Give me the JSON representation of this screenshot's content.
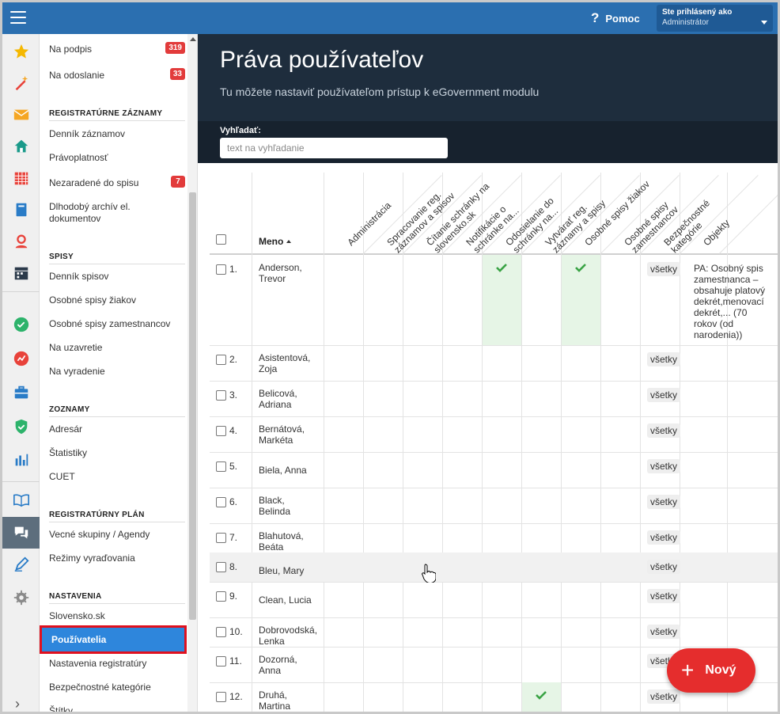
{
  "topbar": {
    "help_label": "Pomoc",
    "user_label": "Ste prihlásený ako",
    "user_name": "Administrátor"
  },
  "rail_icons": [
    "star-icon",
    "wand-icon",
    "mail-icon",
    "home-icon",
    "calendar-icon",
    "book-icon",
    "person-icon",
    "calendar-check-icon",
    "check-circle-icon",
    "chart-badge-icon",
    "briefcase-icon",
    "shield-icon",
    "bar-chart-icon",
    "open-book-icon",
    "chat-icon",
    "pen-icon",
    "gear-icon"
  ],
  "sidebar": {
    "items": [
      {
        "label": "Na podpis",
        "badge": "319"
      },
      {
        "label": "Na odoslanie",
        "badge": "33"
      }
    ],
    "sections": [
      {
        "title": "REGISTRATÚRNE ZÁZNAMY",
        "items": [
          "Denník záznamov",
          "Právoplatnosť",
          "Nezaradené do spisu",
          "Dlhodobý archív el. dokumentov"
        ],
        "badge_item": "Nezaradené do spisu",
        "badge": "7"
      },
      {
        "title": "SPISY",
        "items": [
          "Denník spisov",
          "Osobné spisy žiakov",
          "Osobné spisy zamestnancov",
          "Na uzavretie",
          "Na vyradenie"
        ]
      },
      {
        "title": "ZOZNAMY",
        "items": [
          "Adresár",
          "Štatistiky",
          "CUET"
        ]
      },
      {
        "title": "REGISTRATÚRNY PLÁN",
        "items": [
          "Vecné skupiny / Agendy",
          "Režimy vyraďovania"
        ]
      },
      {
        "title": "NASTAVENIA",
        "items": [
          "Slovensko.sk",
          "Používatelia",
          "Nastavenia registratúry",
          "Bezpečnostné kategórie",
          "Štítky"
        ]
      }
    ],
    "selected": "Používatelia"
  },
  "page": {
    "title": "Práva používateľov",
    "subtitle": "Tu môžete nastaviť používateľom prístup k eGovernment modulu",
    "search_label": "Vyhľadať:",
    "search_placeholder": "text na vyhľadanie"
  },
  "table": {
    "name_header": "Meno",
    "columns": [
      "Administrácia",
      "Spracovanie reg.\nzáznamov a spisov",
      "Čítanie schránky na\nslovensko.sk",
      "Notifikácie o\nschránke na...",
      "Odosielanie do\nschránky na...",
      "Vytvárať reg.\nzáznamy a spisy",
      "Osobné spisy žiakov",
      "Osobné spisy\nzamestnancov",
      "Bezpečnostné\nkategórie",
      "Objekty"
    ],
    "rows": [
      {
        "num": "1.",
        "name": "Anderson,\nTrevor",
        "checks": [
          4,
          6
        ],
        "security": "všetky",
        "objects": "PA: Osobný spis zamestnanca – obsahuje platový dekrét,menovací dekrét,... (70 rokov (od narodenia))"
      },
      {
        "num": "2.",
        "name": "Asistentová,\nZoja",
        "checks": [],
        "security": "všetky",
        "objects": ""
      },
      {
        "num": "3.",
        "name": "Belicová,\nAdriana",
        "checks": [],
        "security": "všetky",
        "objects": ""
      },
      {
        "num": "4.",
        "name": "Bernátová,\nMarkéta",
        "checks": [],
        "security": "všetky",
        "objects": ""
      },
      {
        "num": "5.",
        "name": "Biela, Anna",
        "checks": [],
        "security": "všetky",
        "objects": ""
      },
      {
        "num": "6.",
        "name": "Black,\nBelinda",
        "checks": [],
        "security": "všetky",
        "objects": ""
      },
      {
        "num": "7.",
        "name": "Blahutová,\nBeáta",
        "checks": [],
        "security": "všetky",
        "objects": ""
      },
      {
        "num": "8.",
        "name": "Bleu, Mary",
        "checks": [],
        "security": "všetky",
        "objects": "",
        "hover": true
      },
      {
        "num": "9.",
        "name": "Clean, Lucia",
        "checks": [],
        "security": "všetky",
        "objects": ""
      },
      {
        "num": "10.",
        "name": "Dobrovodská,\nLenka",
        "checks": [],
        "security": "všetky",
        "objects": ""
      },
      {
        "num": "11.",
        "name": "Dozorná,\nAnna",
        "checks": [],
        "security": "všetky",
        "objects": ""
      },
      {
        "num": "12.",
        "name": "Druhá,\nMartina",
        "checks": [
          5
        ],
        "security": "všetky",
        "objects": ""
      }
    ]
  },
  "fab": {
    "label": "Nový"
  },
  "colors": {
    "topbar": "#2b6fb0",
    "hero": "#1e2d3d",
    "selected": "#2e86dc",
    "badge": "#e23b3b",
    "check": "#3aa345",
    "fab": "#e52d2d"
  }
}
